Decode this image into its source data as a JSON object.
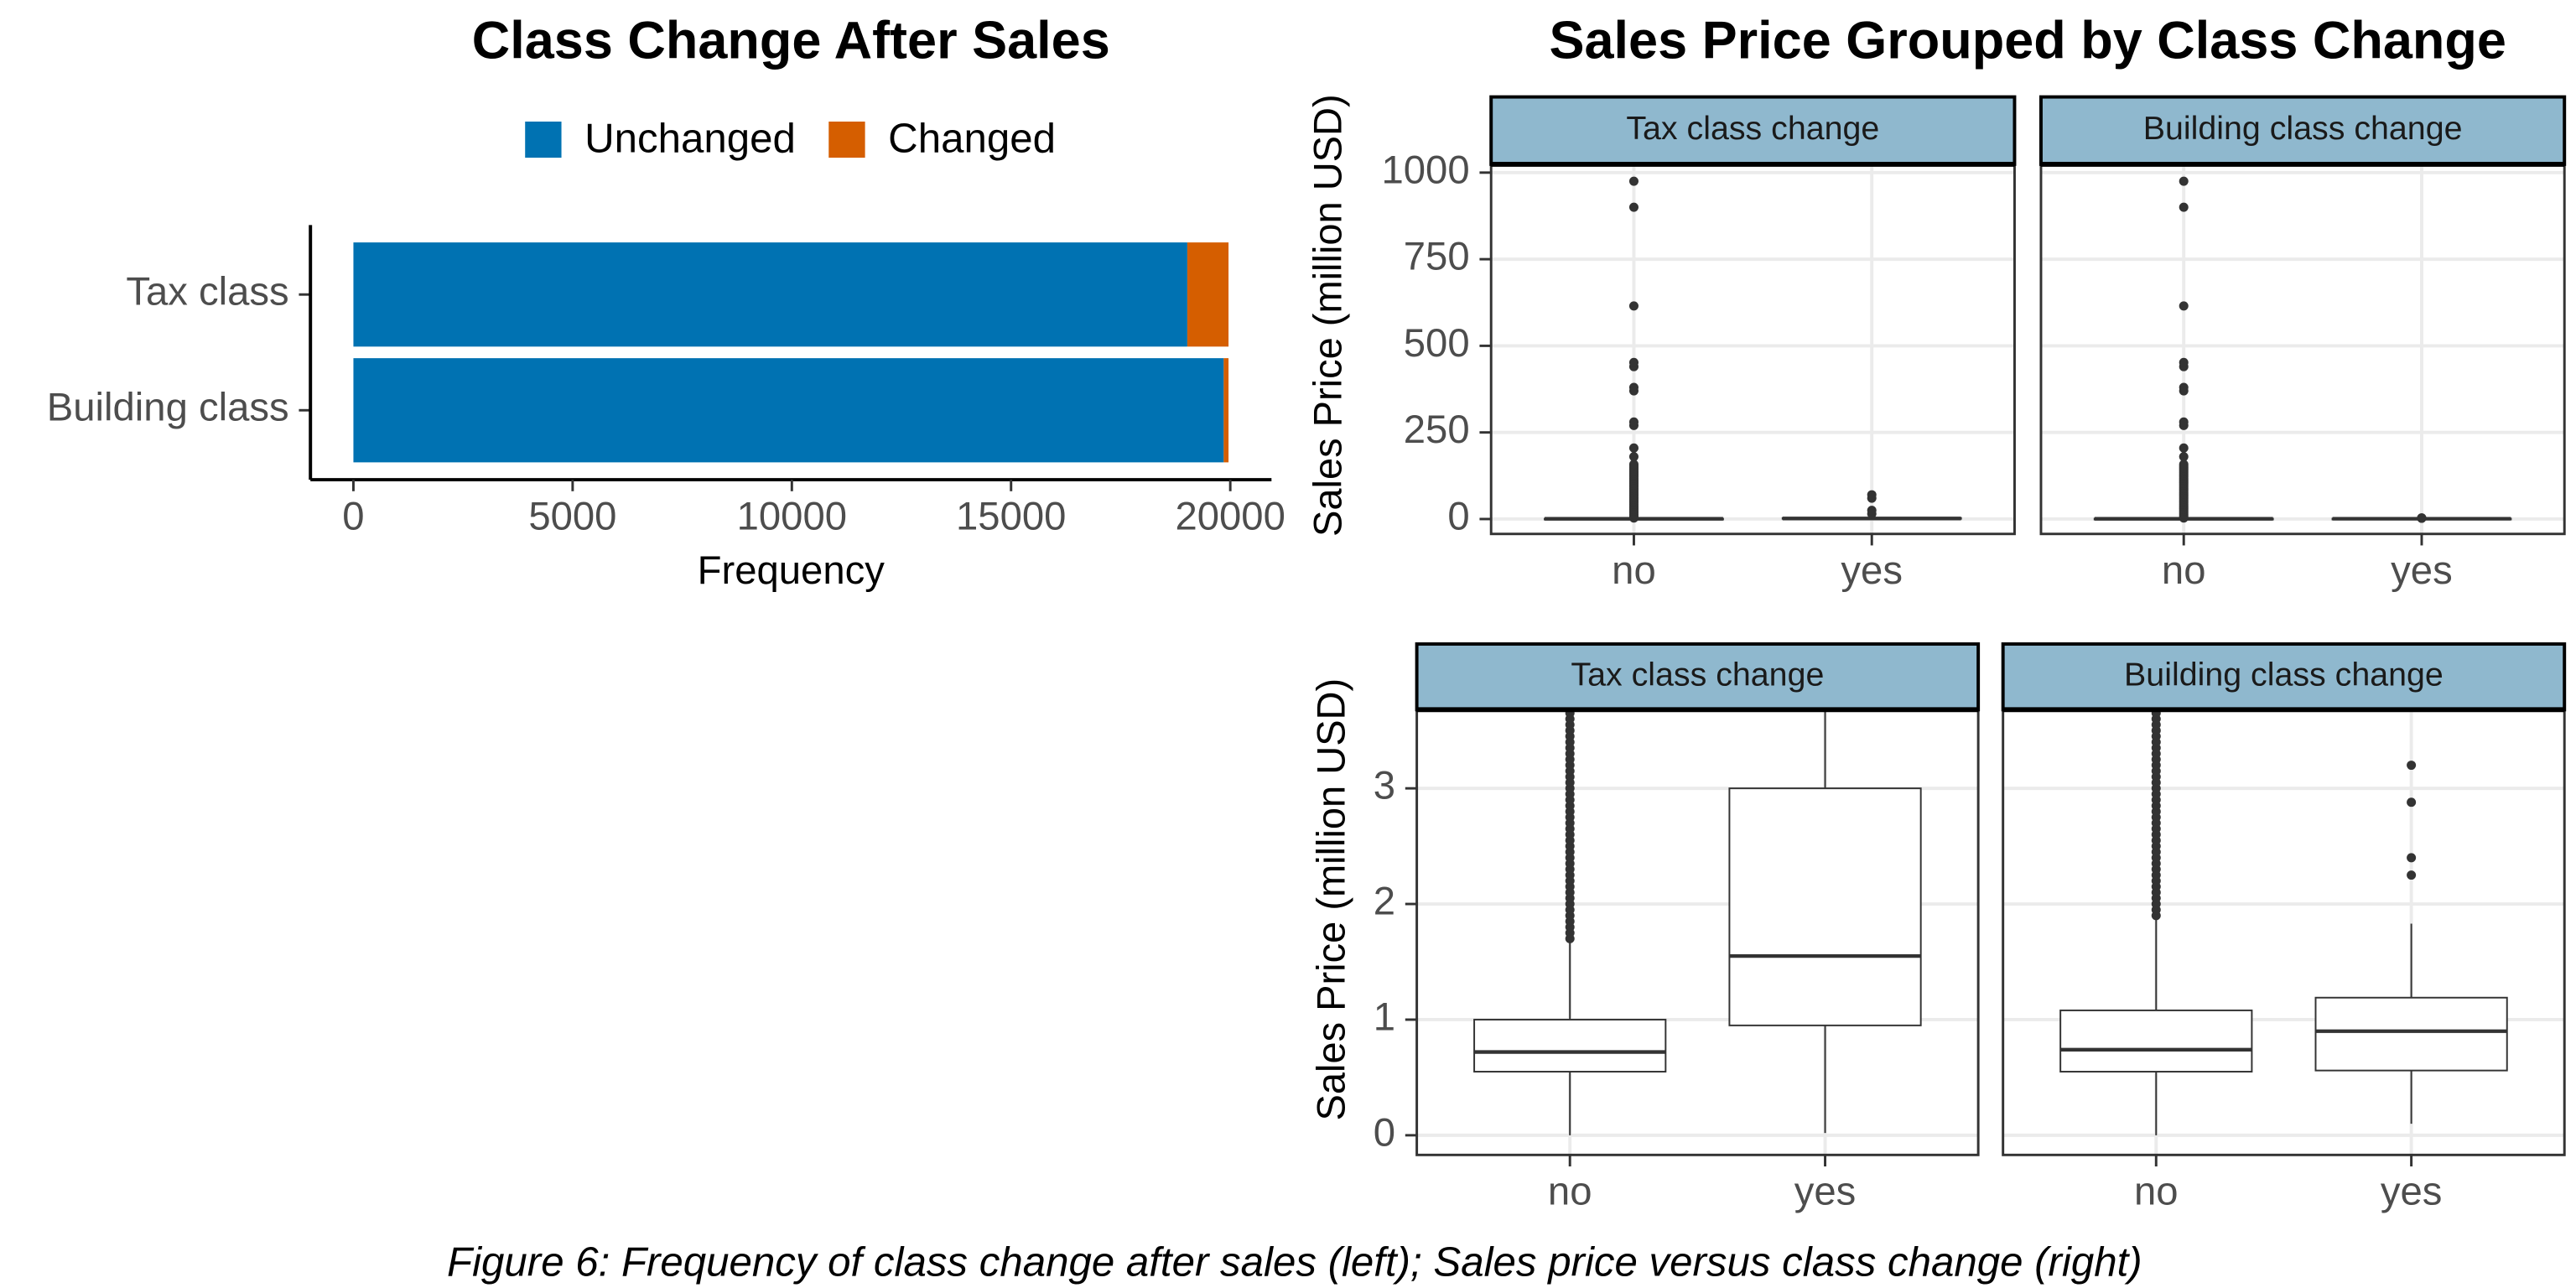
{
  "chart_data": [
    {
      "type": "stacked_bar_horizontal",
      "title": "Class Change After Sales",
      "x_label": "Frequency",
      "categories": [
        "Tax class",
        "Building class"
      ],
      "series": [
        {
          "name": "Unchanged",
          "color": "#0072B2",
          "values": [
            19020,
            19850
          ]
        },
        {
          "name": "Changed",
          "color": "#D55E00",
          "values": [
            940,
            110
          ]
        }
      ],
      "xlim": [
        -980,
        20940
      ],
      "xticks": [
        0,
        5000,
        10000,
        15000,
        20000
      ],
      "legend": "top"
    },
    {
      "type": "boxplot",
      "title": "Sales Price Grouped by Class Change",
      "y_label": "Sales Price (million USD)",
      "categories": [
        "no",
        "yes"
      ],
      "facets": [
        {
          "name": "Tax class change",
          "boxes": [
            {
              "low": 0,
              "q1": 0.55,
              "median": 0.72,
              "q3": 1.0,
              "high": 1.7,
              "outliers": [
                3,
                8,
                13,
                18,
                23,
                28,
                33,
                38,
                43,
                48,
                53,
                58,
                63,
                68,
                73,
                78,
                83,
                88,
                93,
                98,
                103,
                108,
                113,
                118,
                123,
                128,
                133,
                138,
                143,
                148,
                153,
                158,
                180,
                205,
                270,
                280,
                370,
                380,
                440,
                452,
                615,
                900,
                975
              ]
            },
            {
              "low": 0,
              "q1": 0.95,
              "median": 1.55,
              "q3": 3.0,
              "high": 5.2,
              "outliers": [
                15,
                25,
                60,
                70
              ]
            }
          ]
        },
        {
          "name": "Building class change",
          "boxes": [
            {
              "low": 0,
              "q1": 0.55,
              "median": 0.74,
              "q3": 1.08,
              "high": 1.9,
              "outliers": [
                3,
                8,
                13,
                18,
                23,
                28,
                33,
                38,
                43,
                48,
                53,
                58,
                63,
                68,
                73,
                78,
                83,
                88,
                93,
                98,
                103,
                108,
                113,
                118,
                123,
                128,
                133,
                138,
                143,
                148,
                153,
                158,
                180,
                205,
                270,
                280,
                370,
                380,
                440,
                452,
                615,
                900,
                975
              ]
            },
            {
              "low": 0.1,
              "q1": 0.56,
              "median": 0.9,
              "q3": 1.19,
              "high": 1.83,
              "outliers": [
                2.25,
                2.4,
                2.88,
                3.2
              ]
            }
          ]
        }
      ],
      "ylim": [
        -43,
        1024
      ],
      "yticks": [
        0,
        250,
        500,
        750,
        1000
      ],
      "grid": true
    },
    {
      "type": "boxplot",
      "y_label": "Sales Price (million USD)",
      "categories": [
        "no",
        "yes"
      ],
      "facets": [
        {
          "name": "Tax class change",
          "boxes": [
            {
              "low": 0,
              "q1": 0.55,
              "median": 0.72,
              "q3": 1.0,
              "high": 1.7,
              "outliers": [
                1.7,
                1.75,
                1.8,
                1.85,
                1.9,
                1.95,
                2.0,
                2.05,
                2.1,
                2.15,
                2.2,
                2.25,
                2.3,
                2.35,
                2.4,
                2.45,
                2.5,
                2.55,
                2.6,
                2.65,
                2.7,
                2.75,
                2.8,
                2.85,
                2.9,
                2.95,
                3.0,
                3.05,
                3.1,
                3.15,
                3.2,
                3.25,
                3.3,
                3.35,
                3.4,
                3.45,
                3.5,
                3.55,
                3.6,
                3.65
              ]
            },
            {
              "low": 0.02,
              "q1": 0.95,
              "median": 1.55,
              "q3": 3.0,
              "high": 5.2,
              "outliers": []
            }
          ]
        },
        {
          "name": "Building class change",
          "boxes": [
            {
              "low": 0,
              "q1": 0.55,
              "median": 0.74,
              "q3": 1.08,
              "high": 1.9,
              "outliers": [
                1.9,
                1.95,
                2.0,
                2.05,
                2.1,
                2.15,
                2.2,
                2.25,
                2.3,
                2.35,
                2.4,
                2.45,
                2.5,
                2.55,
                2.6,
                2.65,
                2.7,
                2.75,
                2.8,
                2.85,
                2.9,
                2.95,
                3.0,
                3.05,
                3.1,
                3.15,
                3.2,
                3.25,
                3.3,
                3.35,
                3.4,
                3.45,
                3.5,
                3.55,
                3.6,
                3.65
              ]
            },
            {
              "low": 0.1,
              "q1": 0.56,
              "median": 0.9,
              "q3": 1.19,
              "high": 1.83,
              "outliers": [
                2.25,
                2.4,
                2.88,
                3.2
              ]
            }
          ]
        }
      ],
      "ylim": [
        -0.17,
        3.68
      ],
      "yticks": [
        0,
        1,
        2,
        3
      ],
      "grid": true
    }
  ],
  "caption": "Figure 6: Frequency of class change after sales (left); Sales price versus class change (right)"
}
